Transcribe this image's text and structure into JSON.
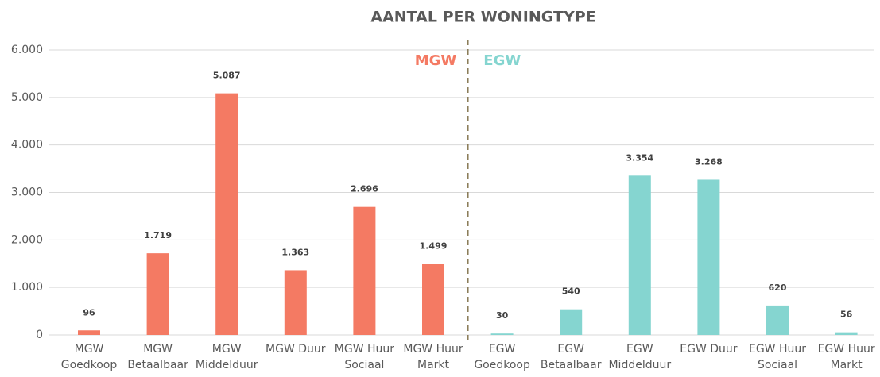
{
  "chart_data": {
    "type": "bar",
    "title": "AANTAL PER WONINGTYPE",
    "categories": [
      "MGW\nGoedkoop",
      "MGW\nBetaalbaar",
      "MGW\nMiddelduur",
      "MGW Duur",
      "MGW Huur\nSociaal",
      "MGW Huur\nMarkt",
      "EGW\nGoedkoop",
      "EGW\nBetaalbaar",
      "EGW\nMiddelduur",
      "EGW Duur",
      "EGW Huur\nSociaal",
      "EGW Huur\nMarkt"
    ],
    "values": [
      96,
      1719,
      5087,
      1363,
      2696,
      1499,
      30,
      540,
      3354,
      3268,
      620,
      56
    ],
    "value_labels": [
      "96",
      "1.719",
      "5.087",
      "1.363",
      "2.696",
      "1.499",
      "30",
      "540",
      "3.354",
      "3.268",
      "620",
      "56"
    ],
    "colors": [
      "#f47a63",
      "#f47a63",
      "#f47a63",
      "#f47a63",
      "#f47a63",
      "#f47a63",
      "#85d5d0",
      "#85d5d0",
      "#85d5d0",
      "#85d5d0",
      "#85d5d0",
      "#85d5d0"
    ],
    "annotations": [
      {
        "text": "MGW",
        "color": "#f47a63"
      },
      {
        "text": "EGW",
        "color": "#85d5d0"
      }
    ],
    "ylim": [
      0,
      6000
    ],
    "yticks": [
      0,
      {
        "value": 1000,
        "label": "1.000"
      },
      {
        "value": 2000,
        "label": "2.000"
      },
      {
        "value": 3000,
        "label": "3.000"
      },
      {
        "value": 4000,
        "label": "4.000"
      },
      {
        "value": 5000,
        "label": "5.000"
      },
      {
        "value": 6000,
        "label": "6.000"
      }
    ],
    "grid": true
  }
}
